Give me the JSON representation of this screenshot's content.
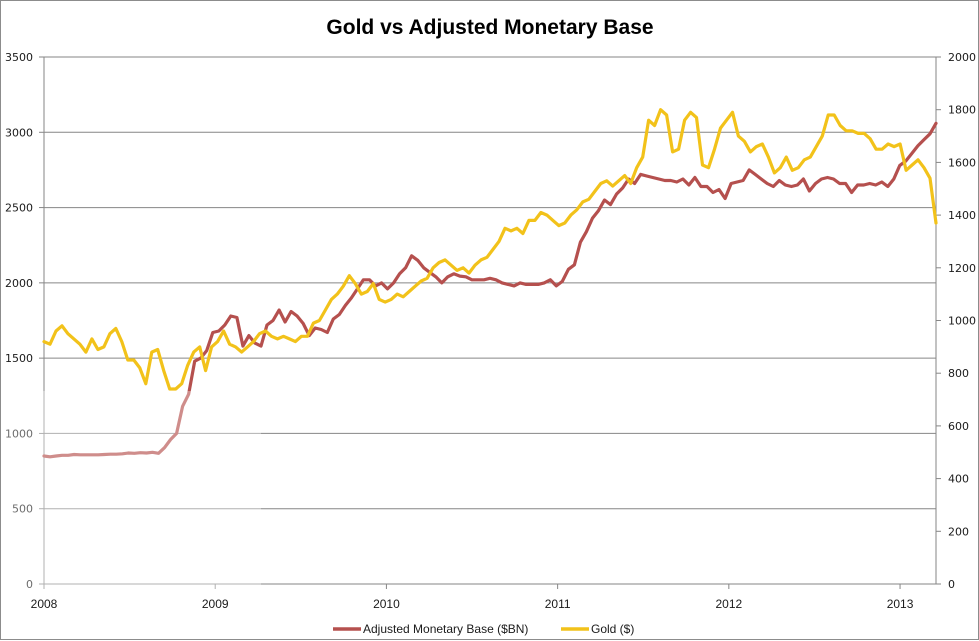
{
  "chart_data": {
    "type": "line",
    "title": "Gold vs Adjusted Monetary Base",
    "xlabel": "",
    "ylabel_left": "",
    "ylabel_right": "",
    "x_ticks": [
      "2008",
      "2009",
      "2010",
      "2011",
      "2012",
      "2013"
    ],
    "x_range": [
      2008.0,
      2013.21
    ],
    "y_left_ticks": [
      "0",
      "500",
      "1000",
      "1500",
      "2000",
      "2500",
      "3000",
      "3500"
    ],
    "y_left_range": [
      0,
      3500
    ],
    "y_right_ticks": [
      "0",
      "200",
      "400",
      "600",
      "800",
      "1000",
      "1200",
      "1400",
      "1600",
      "1800",
      "2000"
    ],
    "y_right_range": [
      0,
      2000
    ],
    "grid": "horizontal major gridlines (left axis)",
    "legend_position": "bottom",
    "series": [
      {
        "name": "Adjusted Monetary Base ($BN)",
        "axis": "left",
        "color": "#b5504e",
        "x_start": 2008.0,
        "step_years": 0.04167,
        "values": [
          850,
          845,
          850,
          855,
          855,
          860,
          858,
          858,
          858,
          858,
          860,
          862,
          862,
          865,
          870,
          868,
          872,
          870,
          875,
          868,
          905,
          960,
          1000,
          1180,
          1260,
          1480,
          1500,
          1550,
          1670,
          1680,
          1720,
          1780,
          1770,
          1580,
          1650,
          1600,
          1580,
          1720,
          1750,
          1820,
          1740,
          1810,
          1780,
          1730,
          1650,
          1700,
          1690,
          1670,
          1760,
          1790,
          1850,
          1900,
          1960,
          2020,
          2020,
          1980,
          2000,
          1960,
          2000,
          2060,
          2100,
          2180,
          2150,
          2100,
          2070,
          2040,
          2000,
          2040,
          2060,
          2045,
          2040,
          2020,
          2020,
          2020,
          2030,
          2020,
          2000,
          1990,
          1980,
          2000,
          1990,
          1990,
          1990,
          2000,
          2020,
          1980,
          2010,
          2090,
          2120,
          2270,
          2340,
          2430,
          2480,
          2550,
          2520,
          2590,
          2630,
          2690,
          2660,
          2720,
          2710,
          2700,
          2690,
          2680,
          2680,
          2670,
          2690,
          2650,
          2700,
          2640,
          2640,
          2600,
          2620,
          2560,
          2660,
          2670,
          2680,
          2750,
          2720,
          2690,
          2660,
          2640,
          2680,
          2650,
          2640,
          2650,
          2690,
          2610,
          2660,
          2690,
          2700,
          2690,
          2660,
          2660,
          2600,
          2650,
          2650,
          2660,
          2650,
          2670,
          2640,
          2690,
          2780,
          2810,
          2860,
          2910,
          2950,
          2990,
          3060
        ]
      },
      {
        "name": "Gold ($)",
        "axis": "right",
        "color": "#f2c21a",
        "x_start": 2008.0,
        "step_years": 0.04167,
        "values": [
          920,
          910,
          960,
          980,
          950,
          930,
          910,
          880,
          930,
          890,
          900,
          950,
          970,
          920,
          850,
          850,
          820,
          760,
          880,
          890,
          810,
          740,
          740,
          760,
          830,
          880,
          900,
          810,
          900,
          920,
          960,
          910,
          900,
          880,
          900,
          920,
          950,
          960,
          940,
          930,
          940,
          930,
          920,
          940,
          940,
          990,
          1000,
          1040,
          1080,
          1100,
          1130,
          1170,
          1140,
          1100,
          1110,
          1140,
          1080,
          1070,
          1080,
          1100,
          1090,
          1110,
          1130,
          1150,
          1160,
          1200,
          1220,
          1230,
          1210,
          1190,
          1200,
          1180,
          1210,
          1230,
          1240,
          1270,
          1300,
          1350,
          1340,
          1350,
          1330,
          1380,
          1380,
          1410,
          1400,
          1380,
          1360,
          1370,
          1400,
          1420,
          1450,
          1460,
          1490,
          1520,
          1530,
          1510,
          1530,
          1550,
          1520,
          1580,
          1620,
          1760,
          1740,
          1800,
          1780,
          1640,
          1650,
          1760,
          1790,
          1770,
          1590,
          1580,
          1650,
          1730,
          1760,
          1790,
          1700,
          1680,
          1640,
          1660,
          1670,
          1620,
          1560,
          1580,
          1620,
          1570,
          1580,
          1610,
          1620,
          1660,
          1700,
          1780,
          1780,
          1740,
          1720,
          1720,
          1710,
          1710,
          1690,
          1650,
          1650,
          1670,
          1660,
          1670,
          1570,
          1590,
          1610,
          1580,
          1540,
          1370
        ]
      }
    ]
  }
}
